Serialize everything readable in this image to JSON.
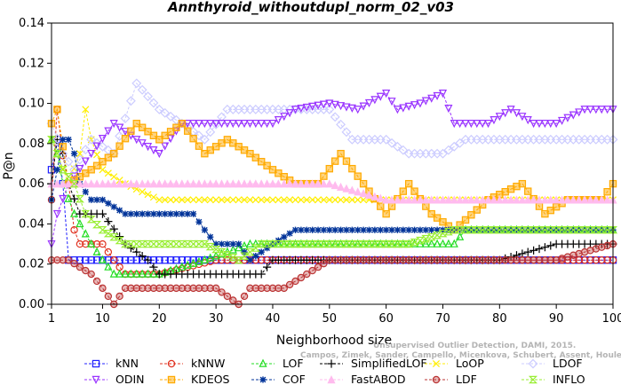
{
  "chart_data": {
    "type": "line",
    "title": "Annthyroid_withoutdupl_norm_02_v03",
    "xlabel": "Neighborhood size",
    "ylabel": "P@n",
    "xlim": [
      1,
      100
    ],
    "ylim": [
      0,
      0.14
    ],
    "xticks": [
      "1",
      "10",
      "20",
      "30",
      "40",
      "50",
      "60",
      "70",
      "80",
      "90",
      "100"
    ],
    "yticks": [
      "0.00",
      "0.02",
      "0.04",
      "0.06",
      "0.08",
      "0.10",
      "0.12",
      "0.14"
    ],
    "grid": false,
    "legend_position": "bottom",
    "colors": {
      "kNN": "#1f1fff",
      "kNNW": "#e0301e",
      "LOF": "#22dd22",
      "SimplifiedLOF": "#000000",
      "LoOP": "#ffee00",
      "LDOF": "#ccccff",
      "ODIN": "#9933ff",
      "KDEOS": "#ffaa00",
      "COF": "#003399",
      "FastABOD": "#ffbbee",
      "LDF": "#bb3333",
      "INFLO": "#99ee33"
    },
    "series": [
      {
        "name": "kNN",
        "marker": "square",
        "points": [
          [
            1,
            0.067
          ],
          [
            2,
            0.082
          ],
          [
            3,
            0.06
          ],
          [
            4,
            0.022
          ],
          [
            10,
            0.022
          ],
          [
            15,
            0.022
          ],
          [
            20,
            0.022
          ],
          [
            30,
            0.022
          ],
          [
            40,
            0.022
          ],
          [
            50,
            0.022
          ],
          [
            60,
            0.022
          ],
          [
            70,
            0.022
          ],
          [
            80,
            0.022
          ],
          [
            90,
            0.022
          ],
          [
            100,
            0.022
          ]
        ]
      },
      {
        "name": "kNNW",
        "marker": "circle-bar",
        "points": [
          [
            1,
            0.052
          ],
          [
            2,
            0.097
          ],
          [
            3,
            0.074
          ],
          [
            4,
            0.06
          ],
          [
            5,
            0.037
          ],
          [
            6,
            0.03
          ],
          [
            10,
            0.03
          ],
          [
            12,
            0.022
          ],
          [
            14,
            0.015
          ],
          [
            20,
            0.015
          ],
          [
            30,
            0.022
          ],
          [
            40,
            0.022
          ],
          [
            60,
            0.022
          ],
          [
            80,
            0.022
          ],
          [
            100,
            0.022
          ]
        ]
      },
      {
        "name": "LOF",
        "marker": "triangle",
        "points": [
          [
            1,
            0.082
          ],
          [
            2,
            0.075
          ],
          [
            3,
            0.06
          ],
          [
            5,
            0.045
          ],
          [
            8,
            0.03
          ],
          [
            10,
            0.022
          ],
          [
            12,
            0.015
          ],
          [
            20,
            0.015
          ],
          [
            28,
            0.022
          ],
          [
            36,
            0.03
          ],
          [
            45,
            0.03
          ],
          [
            60,
            0.03
          ],
          [
            64,
            0.03
          ],
          [
            72,
            0.03
          ],
          [
            74,
            0.037
          ],
          [
            90,
            0.037
          ],
          [
            100,
            0.037
          ]
        ]
      },
      {
        "name": "SimplifiedLOF",
        "marker": "plus",
        "points": [
          [
            1,
            0.06
          ],
          [
            2,
            0.082
          ],
          [
            3,
            0.075
          ],
          [
            4,
            0.06
          ],
          [
            6,
            0.045
          ],
          [
            10,
            0.045
          ],
          [
            14,
            0.03
          ],
          [
            18,
            0.022
          ],
          [
            20,
            0.015
          ],
          [
            28,
            0.015
          ],
          [
            30,
            0.015
          ],
          [
            38,
            0.015
          ],
          [
            40,
            0.022
          ],
          [
            50,
            0.022
          ],
          [
            60,
            0.022
          ],
          [
            80,
            0.022
          ],
          [
            90,
            0.03
          ],
          [
            100,
            0.03
          ]
        ]
      },
      {
        "name": "LoOP",
        "marker": "x",
        "points": [
          [
            1,
            0.082
          ],
          [
            2,
            0.075
          ],
          [
            4,
            0.06
          ],
          [
            6,
            0.075
          ],
          [
            7,
            0.097
          ],
          [
            8,
            0.082
          ],
          [
            10,
            0.067
          ],
          [
            14,
            0.06
          ],
          [
            20,
            0.052
          ],
          [
            30,
            0.052
          ],
          [
            40,
            0.052
          ],
          [
            50,
            0.052
          ],
          [
            60,
            0.052
          ],
          [
            70,
            0.052
          ],
          [
            80,
            0.052
          ],
          [
            90,
            0.052
          ],
          [
            100,
            0.052
          ]
        ]
      },
      {
        "name": "LDOF",
        "marker": "diamond",
        "points": [
          [
            1,
            0.09
          ],
          [
            3,
            0.075
          ],
          [
            5,
            0.067
          ],
          [
            8,
            0.082
          ],
          [
            12,
            0.075
          ],
          [
            16,
            0.11
          ],
          [
            20,
            0.097
          ],
          [
            24,
            0.09
          ],
          [
            28,
            0.082
          ],
          [
            32,
            0.097
          ],
          [
            40,
            0.097
          ],
          [
            50,
            0.097
          ],
          [
            54,
            0.082
          ],
          [
            60,
            0.082
          ],
          [
            64,
            0.075
          ],
          [
            70,
            0.075
          ],
          [
            74,
            0.082
          ],
          [
            80,
            0.082
          ],
          [
            90,
            0.082
          ],
          [
            100,
            0.082
          ]
        ]
      },
      {
        "name": "ODIN",
        "marker": "triangle-down",
        "points": [
          [
            1,
            0.03
          ],
          [
            2,
            0.045
          ],
          [
            4,
            0.06
          ],
          [
            8,
            0.075
          ],
          [
            12,
            0.09
          ],
          [
            16,
            0.082
          ],
          [
            20,
            0.075
          ],
          [
            24,
            0.09
          ],
          [
            28,
            0.09
          ],
          [
            32,
            0.09
          ],
          [
            40,
            0.09
          ],
          [
            44,
            0.097
          ],
          [
            50,
            0.1
          ],
          [
            55,
            0.097
          ],
          [
            60,
            0.105
          ],
          [
            62,
            0.097
          ],
          [
            66,
            0.1
          ],
          [
            70,
            0.105
          ],
          [
            72,
            0.09
          ],
          [
            78,
            0.09
          ],
          [
            82,
            0.097
          ],
          [
            86,
            0.09
          ],
          [
            90,
            0.09
          ],
          [
            95,
            0.097
          ],
          [
            100,
            0.097
          ]
        ]
      },
      {
        "name": "KDEOS",
        "marker": "square-filled",
        "points": [
          [
            1,
            0.09
          ],
          [
            2,
            0.097
          ],
          [
            4,
            0.06
          ],
          [
            8,
            0.067
          ],
          [
            12,
            0.075
          ],
          [
            16,
            0.09
          ],
          [
            20,
            0.082
          ],
          [
            24,
            0.09
          ],
          [
            28,
            0.075
          ],
          [
            32,
            0.082
          ],
          [
            36,
            0.075
          ],
          [
            40,
            0.067
          ],
          [
            44,
            0.06
          ],
          [
            48,
            0.06
          ],
          [
            52,
            0.075
          ],
          [
            56,
            0.06
          ],
          [
            60,
            0.045
          ],
          [
            64,
            0.06
          ],
          [
            68,
            0.045
          ],
          [
            72,
            0.037
          ],
          [
            78,
            0.052
          ],
          [
            84,
            0.06
          ],
          [
            88,
            0.045
          ],
          [
            92,
            0.052
          ],
          [
            98,
            0.052
          ],
          [
            100,
            0.06
          ]
        ]
      },
      {
        "name": "COF",
        "marker": "star",
        "points": [
          [
            1,
            0.052
          ],
          [
            2,
            0.067
          ],
          [
            3,
            0.082
          ],
          [
            4,
            0.082
          ],
          [
            5,
            0.075
          ],
          [
            6,
            0.06
          ],
          [
            8,
            0.052
          ],
          [
            10,
            0.052
          ],
          [
            14,
            0.045
          ],
          [
            20,
            0.045
          ],
          [
            26,
            0.045
          ],
          [
            28,
            0.037
          ],
          [
            30,
            0.03
          ],
          [
            34,
            0.03
          ],
          [
            36,
            0.022
          ],
          [
            40,
            0.03
          ],
          [
            44,
            0.037
          ],
          [
            50,
            0.037
          ],
          [
            60,
            0.037
          ],
          [
            70,
            0.037
          ],
          [
            80,
            0.037
          ],
          [
            90,
            0.037
          ],
          [
            100,
            0.037
          ]
        ]
      },
      {
        "name": "FastABOD",
        "marker": "triangle-filled",
        "points": [
          [
            1,
            0.06
          ],
          [
            5,
            0.06
          ],
          [
            10,
            0.06
          ],
          [
            20,
            0.06
          ],
          [
            30,
            0.06
          ],
          [
            40,
            0.06
          ],
          [
            50,
            0.06
          ],
          [
            60,
            0.052
          ],
          [
            70,
            0.052
          ],
          [
            80,
            0.052
          ],
          [
            90,
            0.052
          ],
          [
            100,
            0.052
          ]
        ]
      },
      {
        "name": "LDF",
        "marker": "circle-plus",
        "points": [
          [
            1,
            0.022
          ],
          [
            4,
            0.022
          ],
          [
            8,
            0.015
          ],
          [
            10,
            0.008
          ],
          [
            12,
            0.0
          ],
          [
            14,
            0.008
          ],
          [
            20,
            0.008
          ],
          [
            30,
            0.008
          ],
          [
            34,
            0.0
          ],
          [
            36,
            0.008
          ],
          [
            42,
            0.008
          ],
          [
            50,
            0.022
          ],
          [
            60,
            0.022
          ],
          [
            70,
            0.022
          ],
          [
            80,
            0.022
          ],
          [
            90,
            0.022
          ],
          [
            100,
            0.03
          ]
        ]
      },
      {
        "name": "INFLO",
        "marker": "hourglass",
        "points": [
          [
            1,
            0.082
          ],
          [
            2,
            0.075
          ],
          [
            3,
            0.067
          ],
          [
            5,
            0.06
          ],
          [
            7,
            0.045
          ],
          [
            10,
            0.037
          ],
          [
            14,
            0.03
          ],
          [
            20,
            0.03
          ],
          [
            28,
            0.03
          ],
          [
            34,
            0.022
          ],
          [
            38,
            0.03
          ],
          [
            45,
            0.03
          ],
          [
            55,
            0.03
          ],
          [
            64,
            0.03
          ],
          [
            72,
            0.037
          ],
          [
            80,
            0.037
          ],
          [
            90,
            0.037
          ],
          [
            100,
            0.037
          ]
        ]
      }
    ]
  },
  "watermark": {
    "line1": "Unsupervised Outlier Detection, DAMI, 2015.",
    "line2": "Campos, Zimek, Sander, Campello, Micenkova, Schubert, Assent, Houle"
  }
}
